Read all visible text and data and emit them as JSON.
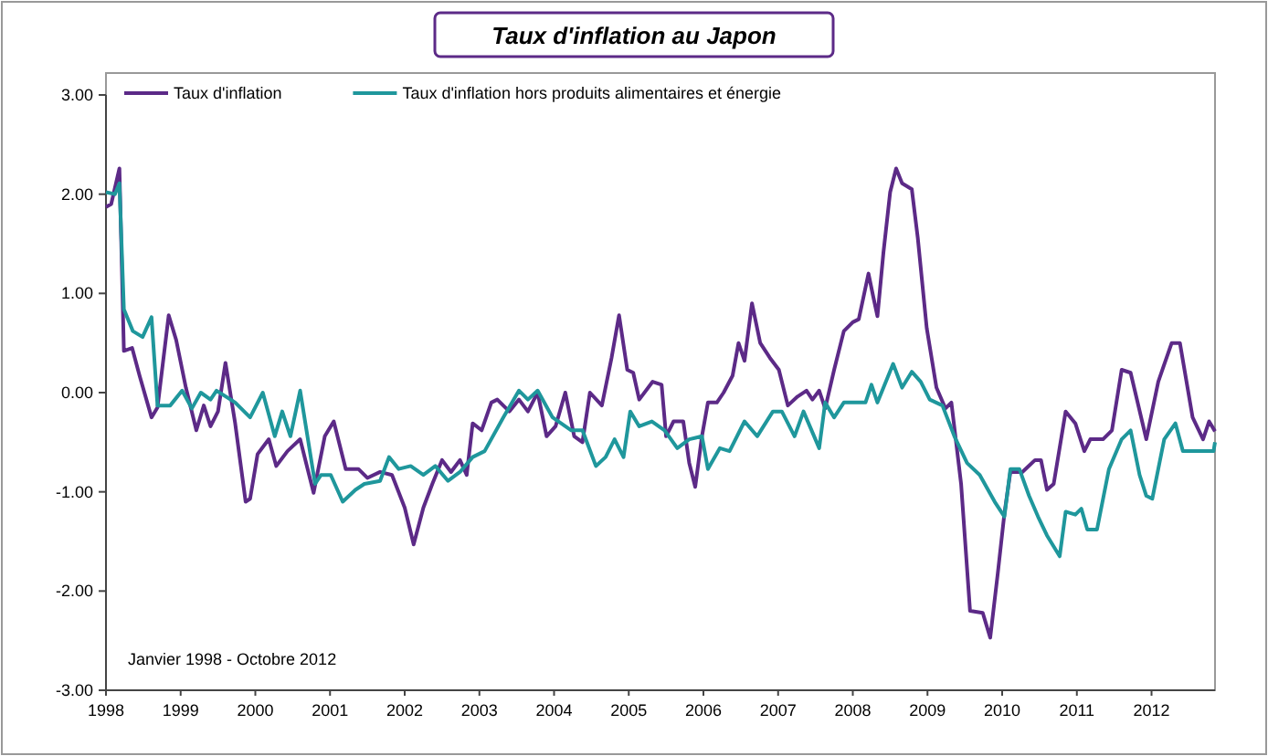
{
  "chart_data": {
    "type": "line",
    "title": "Taux d'inflation au Japon",
    "xlim": [
      1998,
      2012.85
    ],
    "xticks": [
      1998,
      1999,
      2000,
      2001,
      2002,
      2003,
      2004,
      2005,
      2006,
      2007,
      2008,
      2009,
      2010,
      2011,
      2012
    ],
    "ylim": [
      -3,
      3
    ],
    "yticks": [
      {
        "value": 3,
        "label": "3.00"
      },
      {
        "value": 2,
        "label": "2.00"
      },
      {
        "value": 1,
        "label": "1.00"
      },
      {
        "value": 0,
        "label": "0.00"
      },
      {
        "value": -1,
        "label": "-1.00"
      },
      {
        "value": -2,
        "label": "-2.00"
      },
      {
        "value": -3,
        "label": "-3.00"
      }
    ],
    "grid": false,
    "legend": "top left",
    "marker": "none",
    "line_style": "solid",
    "annotations": [
      "Janvier 1998 - Octobre 2012"
    ],
    "series": [
      {
        "name": "Taux d'inflation",
        "color": "#5c2a87",
        "x": [
          1998,
          1998.07,
          1998.18,
          1998.24,
          1998.35,
          1998.45,
          1998.61,
          1998.69,
          1998.84,
          1998.94,
          1999.07,
          1999.21,
          1999.31,
          1999.4,
          1999.5,
          1999.6,
          1999.73,
          1999.87,
          1999.93,
          2000.03,
          2000.18,
          2000.28,
          2000.43,
          2000.6,
          2000.78,
          2000.93,
          2001.05,
          2001.21,
          2001.38,
          2001.5,
          2001.67,
          2001.83,
          2002,
          2002.12,
          2002.25,
          2002.37,
          2002.5,
          2002.62,
          2002.74,
          2002.83,
          2002.91,
          2003.03,
          2003.16,
          2003.24,
          2003.4,
          2003.53,
          2003.65,
          2003.78,
          2003.9,
          2004.02,
          2004.15,
          2004.27,
          2004.38,
          2004.48,
          2004.64,
          2004.77,
          2004.87,
          2004.98,
          2005.06,
          2005.14,
          2005.32,
          2005.44,
          2005.5,
          2005.6,
          2005.73,
          2005.81,
          2005.89,
          2005.98,
          2006.06,
          2006.18,
          2006.27,
          2006.39,
          2006.47,
          2006.55,
          2006.65,
          2006.76,
          2006.89,
          2007.01,
          2007.13,
          2007.26,
          2007.38,
          2007.46,
          2007.55,
          2007.63,
          2007.75,
          2007.88,
          2008,
          2008.08,
          2008.21,
          2008.27,
          2008.33,
          2008.41,
          2008.5,
          2008.58,
          2008.66,
          2008.79,
          2008.87,
          2008.99,
          2009.12,
          2009.24,
          2009.32,
          2009.45,
          2009.57,
          2009.74,
          2009.84,
          2009.94,
          2010.03,
          2010.11,
          2010.27,
          2010.44,
          2010.52,
          2010.6,
          2010.69,
          2010.85,
          2010.98,
          2011.1,
          2011.18,
          2011.35,
          2011.47,
          2011.6,
          2011.72,
          2011.93,
          2012.09,
          2012.27,
          2012.38,
          2012.55,
          2012.69,
          2012.77,
          2012.85
        ],
        "values": [
          1.87,
          1.9,
          2.26,
          0.42,
          0.45,
          0.17,
          -0.25,
          -0.15,
          0.78,
          0.53,
          0.05,
          -0.38,
          -0.13,
          -0.34,
          -0.19,
          0.3,
          -0.31,
          -1.1,
          -1.07,
          -0.62,
          -0.47,
          -0.74,
          -0.59,
          -0.47,
          -1.01,
          -0.44,
          -0.29,
          -0.77,
          -0.77,
          -0.86,
          -0.8,
          -0.83,
          -1.16,
          -1.53,
          -1.16,
          -0.92,
          -0.68,
          -0.8,
          -0.68,
          -0.83,
          -0.31,
          -0.38,
          -0.1,
          -0.07,
          -0.19,
          -0.07,
          -0.19,
          0,
          -0.44,
          -0.34,
          0,
          -0.44,
          -0.5,
          0,
          -0.13,
          0.35,
          0.78,
          0.23,
          0.2,
          -0.07,
          0.11,
          0.08,
          -0.44,
          -0.29,
          -0.29,
          -0.71,
          -0.95,
          -0.44,
          -0.1,
          -0.1,
          0,
          0.17,
          0.5,
          0.32,
          0.9,
          0.5,
          0.35,
          0.23,
          -0.13,
          -0.04,
          0.02,
          -0.07,
          0.02,
          -0.16,
          0.23,
          0.62,
          0.71,
          0.74,
          1.2,
          0.98,
          0.77,
          1.41,
          2.02,
          2.26,
          2.11,
          2.05,
          1.56,
          0.65,
          0.05,
          -0.16,
          -0.1,
          -0.92,
          -2.2,
          -2.22,
          -2.47,
          -1.83,
          -1.22,
          -0.8,
          -0.8,
          -0.68,
          -0.68,
          -0.98,
          -0.92,
          -0.19,
          -0.31,
          -0.59,
          -0.47,
          -0.47,
          -0.38,
          0.23,
          0.2,
          -0.47,
          0.11,
          0.5,
          0.5,
          -0.25,
          -0.47,
          -0.29,
          -0.39
        ]
      },
      {
        "name": "Taux d'inflation hors produits alimentaires et énergie",
        "color": "#1f979c",
        "x": [
          1998,
          1998.12,
          1998.18,
          1998.24,
          1998.36,
          1998.49,
          1998.61,
          1998.69,
          1998.86,
          1999.02,
          1999.15,
          1999.27,
          1999.4,
          1999.48,
          1999.73,
          1999.93,
          2000.1,
          2000.26,
          2000.36,
          2000.47,
          2000.6,
          2000.8,
          2000.88,
          2001.01,
          2001.17,
          2001.34,
          2001.46,
          2001.67,
          2001.79,
          2001.92,
          2002.08,
          2002.25,
          2002.41,
          2002.58,
          2002.74,
          2002.91,
          2003.07,
          2003.32,
          2003.53,
          2003.65,
          2003.78,
          2003.98,
          2004.23,
          2004.38,
          2004.56,
          2004.69,
          2004.81,
          2004.93,
          2005.02,
          2005.14,
          2005.31,
          2005.48,
          2005.65,
          2005.81,
          2005.98,
          2006.06,
          2006.22,
          2006.35,
          2006.55,
          2006.72,
          2006.93,
          2007.05,
          2007.22,
          2007.34,
          2007.55,
          2007.63,
          2007.75,
          2007.88,
          2008.17,
          2008.25,
          2008.33,
          2008.54,
          2008.66,
          2008.79,
          2008.91,
          2009.03,
          2009.2,
          2009.36,
          2009.53,
          2009.7,
          2009.9,
          2010.03,
          2010.11,
          2010.23,
          2010.36,
          2010.48,
          2010.6,
          2010.77,
          2010.85,
          2010.98,
          2011.06,
          2011.14,
          2011.27,
          2011.43,
          2011.6,
          2011.72,
          2011.84,
          2011.93,
          2012.01,
          2012.17,
          2012.32,
          2012.42,
          2012.83,
          2012.85
        ],
        "values": [
          2.02,
          2,
          2.11,
          0.84,
          0.62,
          0.56,
          0.76,
          -0.13,
          -0.13,
          0.02,
          -0.16,
          0,
          -0.07,
          0.02,
          -0.1,
          -0.25,
          0,
          -0.44,
          -0.19,
          -0.44,
          0.02,
          -0.92,
          -0.83,
          -0.83,
          -1.1,
          -0.98,
          -0.92,
          -0.89,
          -0.65,
          -0.77,
          -0.74,
          -0.83,
          -0.74,
          -0.89,
          -0.8,
          -0.65,
          -0.59,
          -0.25,
          0.02,
          -0.07,
          0.02,
          -0.25,
          -0.38,
          -0.38,
          -0.74,
          -0.65,
          -0.47,
          -0.65,
          -0.19,
          -0.34,
          -0.29,
          -0.38,
          -0.56,
          -0.47,
          -0.44,
          -0.77,
          -0.56,
          -0.59,
          -0.29,
          -0.44,
          -0.19,
          -0.19,
          -0.44,
          -0.19,
          -0.56,
          -0.1,
          -0.25,
          -0.1,
          -0.1,
          0.08,
          -0.1,
          0.29,
          0.05,
          0.21,
          0.11,
          -0.07,
          -0.13,
          -0.44,
          -0.71,
          -0.83,
          -1.1,
          -1.25,
          -0.77,
          -0.77,
          -1.04,
          -1.25,
          -1.44,
          -1.65,
          -1.2,
          -1.23,
          -1.17,
          -1.38,
          -1.38,
          -0.77,
          -0.47,
          -0.38,
          -0.83,
          -1.04,
          -1.07,
          -0.47,
          -0.31,
          -0.59,
          -0.59,
          -0.5
        ]
      }
    ]
  }
}
